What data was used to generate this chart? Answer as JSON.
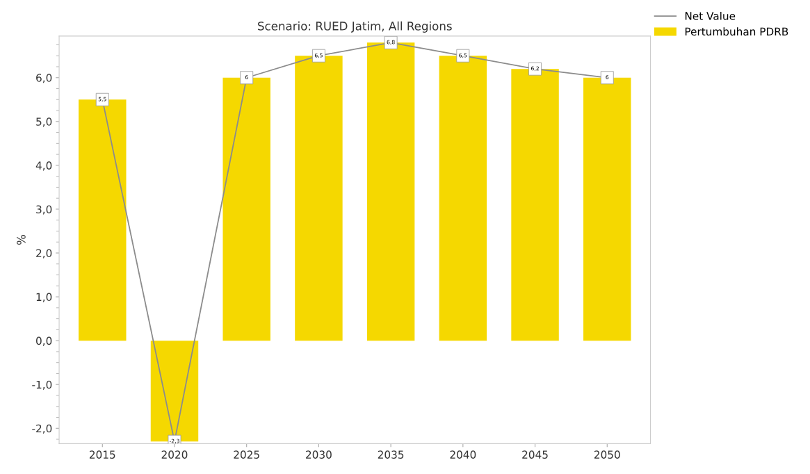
{
  "chart_data": {
    "type": "bar",
    "title": "Scenario: RUED Jatim, All Regions",
    "ylabel": "%",
    "categories": [
      "2015",
      "2020",
      "2025",
      "2030",
      "2035",
      "2040",
      "2045",
      "2050"
    ],
    "series": [
      {
        "name": "Net Value",
        "type": "line",
        "color": "#8c8c8c",
        "values": [
          5.5,
          -2.3,
          6,
          6.5,
          6.8,
          6.5,
          6.2,
          6
        ],
        "value_labels": [
          "5,5",
          "-2,3",
          "6",
          "6,5",
          "6,8",
          "6,5",
          "6,2",
          "6"
        ]
      },
      {
        "name": "Pertumbuhan PDRB",
        "color": "#f5d800",
        "values": [
          5.5,
          -2.3,
          6,
          6.5,
          6.8,
          6.5,
          6.2,
          6
        ]
      }
    ],
    "ylim": [
      -2.35,
      6.95
    ],
    "yticks": [
      {
        "value": -2,
        "label": "-2,0"
      },
      {
        "value": -1,
        "label": "-1,0"
      },
      {
        "value": 0,
        "label": "0,0"
      },
      {
        "value": 1,
        "label": "1,0"
      },
      {
        "value": 2,
        "label": "2,0"
      },
      {
        "value": 3,
        "label": "3,0"
      },
      {
        "value": 4,
        "label": "4,0"
      },
      {
        "value": 5,
        "label": "5,0"
      },
      {
        "value": 6,
        "label": "6,0"
      }
    ],
    "grid": false,
    "legend": "top right",
    "marker": "square",
    "line_style": "solid"
  }
}
